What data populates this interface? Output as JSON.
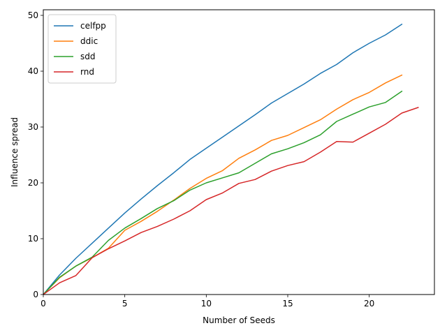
{
  "chart_data": {
    "type": "line",
    "title": "",
    "xlabel": "Number of Seeds",
    "ylabel": "Influence spread",
    "xlim": [
      0,
      24
    ],
    "ylim": [
      0,
      51
    ],
    "xticks": [
      0,
      5,
      10,
      15,
      20
    ],
    "yticks": [
      0,
      10,
      20,
      30,
      40,
      50
    ],
    "grid": false,
    "legend_position": "top-left",
    "series": [
      {
        "name": "celfpp",
        "color": "#1f77b4",
        "x": [
          0,
          1,
          2,
          3,
          4,
          5,
          6,
          7,
          8,
          9,
          10,
          11,
          12,
          13,
          14,
          15,
          16,
          17,
          18,
          19,
          20,
          21,
          22
        ],
        "y": [
          0,
          3.5,
          6.5,
          9.2,
          11.9,
          14.6,
          17.1,
          19.5,
          21.8,
          24.2,
          26.2,
          28.2,
          30.2,
          32.2,
          34.3,
          36.0,
          37.7,
          39.6,
          41.2,
          43.3,
          45.0,
          46.5,
          48.4
        ]
      },
      {
        "name": "ddic",
        "color": "#ff7f0e",
        "x": [
          0,
          1,
          2,
          3,
          4,
          5,
          6,
          7,
          8,
          9,
          10,
          11,
          12,
          13,
          14,
          15,
          16,
          17,
          18,
          19,
          20,
          21,
          22
        ],
        "y": [
          0,
          3.0,
          5.1,
          6.6,
          8.3,
          11.5,
          13.1,
          14.9,
          16.9,
          19.0,
          20.8,
          22.2,
          24.4,
          25.9,
          27.6,
          28.5,
          29.9,
          31.3,
          33.2,
          34.9,
          36.2,
          37.9,
          39.3
        ]
      },
      {
        "name": "sdd",
        "color": "#2ca02c",
        "x": [
          0,
          1,
          2,
          3,
          4,
          5,
          6,
          7,
          8,
          9,
          10,
          11,
          12,
          13,
          14,
          15,
          16,
          17,
          18,
          19,
          20,
          21,
          22
        ],
        "y": [
          0,
          3.1,
          5.1,
          6.7,
          9.7,
          11.9,
          13.6,
          15.4,
          16.8,
          18.7,
          20.0,
          20.9,
          21.8,
          23.5,
          25.2,
          26.1,
          27.2,
          28.6,
          31.0,
          32.3,
          33.6,
          34.4,
          36.4
        ]
      },
      {
        "name": "rnd",
        "color": "#d62728",
        "x": [
          0,
          1,
          2,
          3,
          4,
          5,
          6,
          7,
          8,
          9,
          10,
          11,
          12,
          13,
          14,
          15,
          16,
          17,
          18,
          19,
          20,
          21,
          22,
          23
        ],
        "y": [
          0,
          2.1,
          3.4,
          6.6,
          8.2,
          9.6,
          11.1,
          12.2,
          13.5,
          15.0,
          17.0,
          18.2,
          19.9,
          20.6,
          22.1,
          23.1,
          23.8,
          25.5,
          27.4,
          27.3,
          28.9,
          30.5,
          32.5,
          33.5
        ]
      }
    ]
  }
}
